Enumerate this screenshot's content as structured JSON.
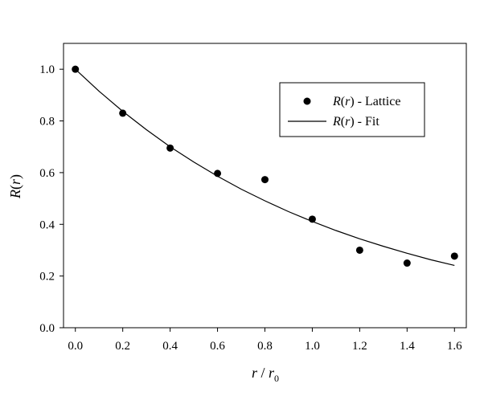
{
  "chart_data": {
    "type": "scatter",
    "xlabel": {
      "main": "r",
      "sep": " / ",
      "sym": "r",
      "sub": "0"
    },
    "ylabel": {
      "fn": "R",
      "arg": "r"
    },
    "xlim": [
      -0.05,
      1.65
    ],
    "ylim": [
      0.0,
      1.1
    ],
    "xticks": [
      "0.0",
      "0.2",
      "0.4",
      "0.6",
      "0.8",
      "1.0",
      "1.2",
      "1.4",
      "1.6"
    ],
    "yticks": [
      "0.0",
      "0.2",
      "0.4",
      "0.6",
      "0.8",
      "1.0"
    ],
    "grid": false,
    "legend_position": "top-right",
    "series": [
      {
        "name": "R(r) - Lattice",
        "name_parts": {
          "fn": "R",
          "arg": "r",
          "rest": " - Lattice"
        },
        "kind": "marker",
        "color": "#000000",
        "x": [
          0.0,
          0.2,
          0.4,
          0.6,
          0.8,
          1.0,
          1.2,
          1.4,
          1.6
        ],
        "y": [
          1.0,
          0.83,
          0.695,
          0.597,
          0.573,
          0.42,
          0.3,
          0.25,
          0.277
        ]
      },
      {
        "name": "R(r) - Fit",
        "name_parts": {
          "fn": "R",
          "arg": "r",
          "rest": " - Fit"
        },
        "kind": "line",
        "color": "#000000",
        "x": [
          0.0,
          0.1,
          0.2,
          0.3,
          0.4,
          0.5,
          0.6,
          0.7,
          0.8,
          0.9,
          1.0,
          1.1,
          1.2,
          1.3,
          1.4,
          1.5,
          1.6
        ],
        "y": [
          1.0,
          0.915,
          0.837,
          0.766,
          0.7,
          0.641,
          0.586,
          0.536,
          0.491,
          0.449,
          0.411,
          0.376,
          0.344,
          0.315,
          0.288,
          0.263,
          0.241
        ]
      }
    ]
  }
}
